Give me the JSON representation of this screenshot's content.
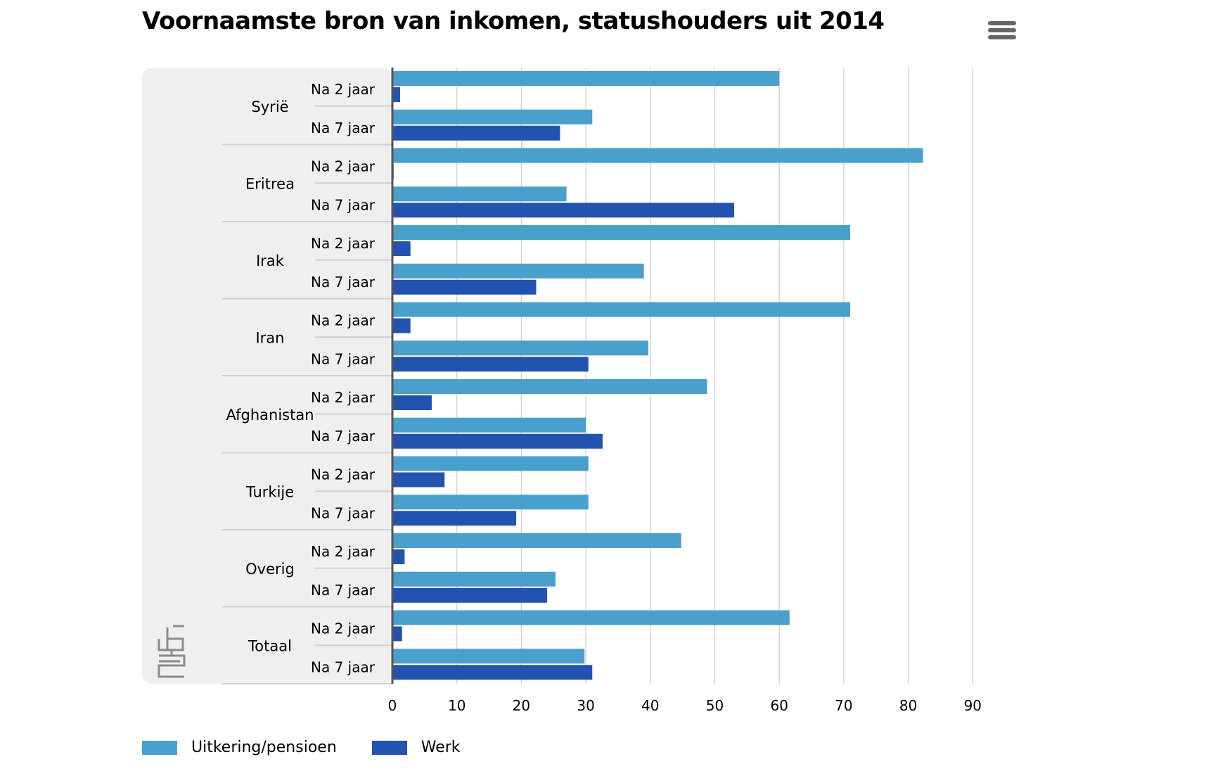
{
  "header": {
    "title": "Voornaamste bron van inkomen, statushouders uit 2014"
  },
  "toolbar": {
    "menu_icon": "hamburger-menu-icon"
  },
  "logo": {
    "icon": "cbs-logo-icon"
  },
  "colors": {
    "uitkering": "#4aa0cc",
    "werk": "#2353b0",
    "panel": "#efefef",
    "grid": "#cccccc",
    "separator": "#cfcfcf"
  },
  "chart_data": {
    "type": "bar",
    "orientation": "horizontal",
    "title": "Voornaamste bron van inkomen, statushouders uit 2014",
    "xlim": [
      0,
      90
    ],
    "x_ticks": [
      "0",
      "10",
      "20",
      "30",
      "40",
      "50",
      "60",
      "70",
      "80",
      "90"
    ],
    "grid": true,
    "legend_position": "bottom-left",
    "series": [
      {
        "name": "Uitkering/pensioen",
        "color": "#4aa0cc"
      },
      {
        "name": "Werk",
        "color": "#2353b0"
      }
    ],
    "groups": [
      {
        "name": "Syrië",
        "rows": [
          {
            "label": "Na 2 jaar",
            "values": [
              60,
              1.2
            ]
          },
          {
            "label": "Na 7 jaar",
            "values": [
              31,
              26
            ]
          }
        ]
      },
      {
        "name": "Eritrea",
        "rows": [
          {
            "label": "Na 2 jaar",
            "values": [
              82.3,
              0.2
            ]
          },
          {
            "label": "Na 7 jaar",
            "values": [
              27,
              53
            ]
          }
        ]
      },
      {
        "name": "Irak",
        "rows": [
          {
            "label": "Na 2 jaar",
            "values": [
              71,
              2.8
            ]
          },
          {
            "label": "Na 7 jaar",
            "values": [
              39,
              22.3
            ]
          }
        ]
      },
      {
        "name": "Iran",
        "rows": [
          {
            "label": "Na 2 jaar",
            "values": [
              71,
              2.8
            ]
          },
          {
            "label": "Na 7 jaar",
            "values": [
              39.7,
              30.4
            ]
          }
        ]
      },
      {
        "name": "Afghanistan",
        "rows": [
          {
            "label": "Na 2 jaar",
            "values": [
              48.8,
              6.1
            ]
          },
          {
            "label": "Na 7 jaar",
            "values": [
              30,
              32.6
            ]
          }
        ]
      },
      {
        "name": "Turkije",
        "rows": [
          {
            "label": "Na 2 jaar",
            "values": [
              30.4,
              8.1
            ]
          },
          {
            "label": "Na 7 jaar",
            "values": [
              30.4,
              19.2
            ]
          }
        ]
      },
      {
        "name": "Overig",
        "rows": [
          {
            "label": "Na 2 jaar",
            "values": [
              44.8,
              1.9
            ]
          },
          {
            "label": "Na 7 jaar",
            "values": [
              25.3,
              24
            ]
          }
        ]
      },
      {
        "name": "Totaal",
        "rows": [
          {
            "label": "Na 2 jaar",
            "values": [
              61.6,
              1.5
            ]
          },
          {
            "label": "Na 7 jaar",
            "values": [
              29.8,
              31
            ]
          }
        ]
      }
    ]
  }
}
